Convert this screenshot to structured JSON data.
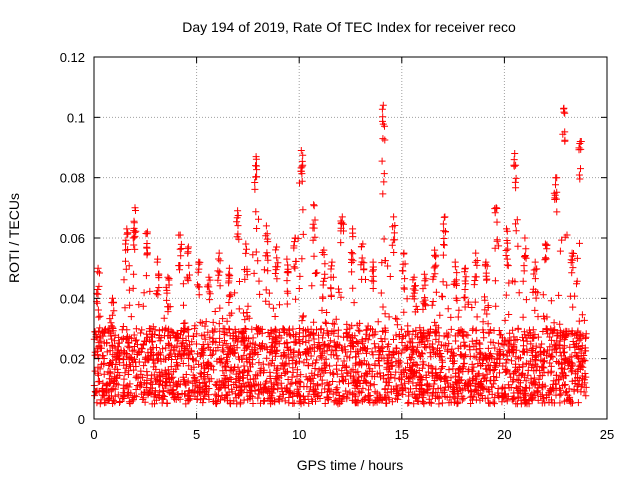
{
  "chart_data": {
    "type": "scatter",
    "title": "Day 194 of 2019, Rate Of TEC Index for receiver reco",
    "xlabel": "GPS time / hours",
    "ylabel": "ROTI / TECUs",
    "xlim": [
      0,
      25
    ],
    "ylim": [
      0,
      0.12
    ],
    "x_ticks": [
      0,
      5,
      10,
      15,
      20,
      25
    ],
    "y_ticks": [
      0,
      0.02,
      0.04,
      0.06,
      0.08,
      0.1,
      0.12
    ],
    "x_tick_labels": [
      "0",
      "5",
      "10",
      "15",
      "20",
      "25"
    ],
    "y_tick_labels": [
      "0",
      "0.02",
      "0.04",
      "0.06",
      "0.08",
      "0.1",
      "0.12"
    ],
    "grid": true,
    "marker": "+",
    "color": "#ff0000",
    "series": [
      {
        "name": "ROTI",
        "x_range": [
          0,
          24
        ],
        "baseline_band": [
          0.005,
          0.03
        ],
        "peaks": [
          {
            "x": 0.2,
            "y": 0.05
          },
          {
            "x": 0.9,
            "y": 0.04
          },
          {
            "x": 1.6,
            "y": 0.063
          },
          {
            "x": 2.0,
            "y": 0.07
          },
          {
            "x": 2.6,
            "y": 0.062
          },
          {
            "x": 3.1,
            "y": 0.053
          },
          {
            "x": 3.6,
            "y": 0.047
          },
          {
            "x": 4.2,
            "y": 0.061
          },
          {
            "x": 4.6,
            "y": 0.057
          },
          {
            "x": 5.1,
            "y": 0.052
          },
          {
            "x": 5.6,
            "y": 0.047
          },
          {
            "x": 6.1,
            "y": 0.055
          },
          {
            "x": 6.6,
            "y": 0.05
          },
          {
            "x": 7.0,
            "y": 0.069
          },
          {
            "x": 7.4,
            "y": 0.058
          },
          {
            "x": 7.9,
            "y": 0.087
          },
          {
            "x": 8.4,
            "y": 0.064
          },
          {
            "x": 8.9,
            "y": 0.057
          },
          {
            "x": 9.4,
            "y": 0.053
          },
          {
            "x": 9.8,
            "y": 0.06
          },
          {
            "x": 10.1,
            "y": 0.089
          },
          {
            "x": 10.7,
            "y": 0.071
          },
          {
            "x": 11.2,
            "y": 0.056
          },
          {
            "x": 11.6,
            "y": 0.052
          },
          {
            "x": 12.1,
            "y": 0.067
          },
          {
            "x": 12.6,
            "y": 0.063
          },
          {
            "x": 13.1,
            "y": 0.058
          },
          {
            "x": 13.6,
            "y": 0.052
          },
          {
            "x": 14.1,
            "y": 0.104
          },
          {
            "x": 14.6,
            "y": 0.067
          },
          {
            "x": 15.1,
            "y": 0.055
          },
          {
            "x": 15.6,
            "y": 0.047
          },
          {
            "x": 16.1,
            "y": 0.048
          },
          {
            "x": 16.6,
            "y": 0.056
          },
          {
            "x": 17.1,
            "y": 0.067
          },
          {
            "x": 17.6,
            "y": 0.052
          },
          {
            "x": 18.1,
            "y": 0.05
          },
          {
            "x": 18.6,
            "y": 0.055
          },
          {
            "x": 19.1,
            "y": 0.052
          },
          {
            "x": 19.6,
            "y": 0.07
          },
          {
            "x": 20.1,
            "y": 0.063
          },
          {
            "x": 20.5,
            "y": 0.088
          },
          {
            "x": 21.0,
            "y": 0.06
          },
          {
            "x": 21.5,
            "y": 0.052
          },
          {
            "x": 22.0,
            "y": 0.058
          },
          {
            "x": 22.5,
            "y": 0.08
          },
          {
            "x": 22.9,
            "y": 0.103
          },
          {
            "x": 23.3,
            "y": 0.055
          },
          {
            "x": 23.7,
            "y": 0.092
          }
        ]
      }
    ]
  }
}
